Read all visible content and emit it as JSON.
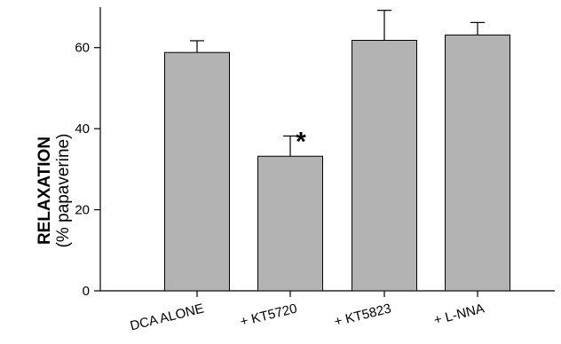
{
  "chart_data": {
    "type": "bar",
    "categories": [
      "DCA ALONE",
      "+ KT5720",
      "+ KT5823",
      "+ L-NNA"
    ],
    "values": [
      58.8,
      33.2,
      61.8,
      63.1
    ],
    "errors": [
      2.9,
      5.0,
      7.4,
      3.1
    ],
    "ylim": [
      0,
      70
    ],
    "yticks": [
      0,
      20,
      40,
      60
    ],
    "title": "",
    "xlabel": "",
    "ylabel": "RELAXATION",
    "ylabel_sub": "(% papaverine)",
    "annotations": [
      {
        "category": "+ KT5720",
        "text": "*"
      }
    ],
    "grid": false,
    "legend": "none",
    "bar_color": "#b3b3b3",
    "edge_color": "#000000"
  }
}
